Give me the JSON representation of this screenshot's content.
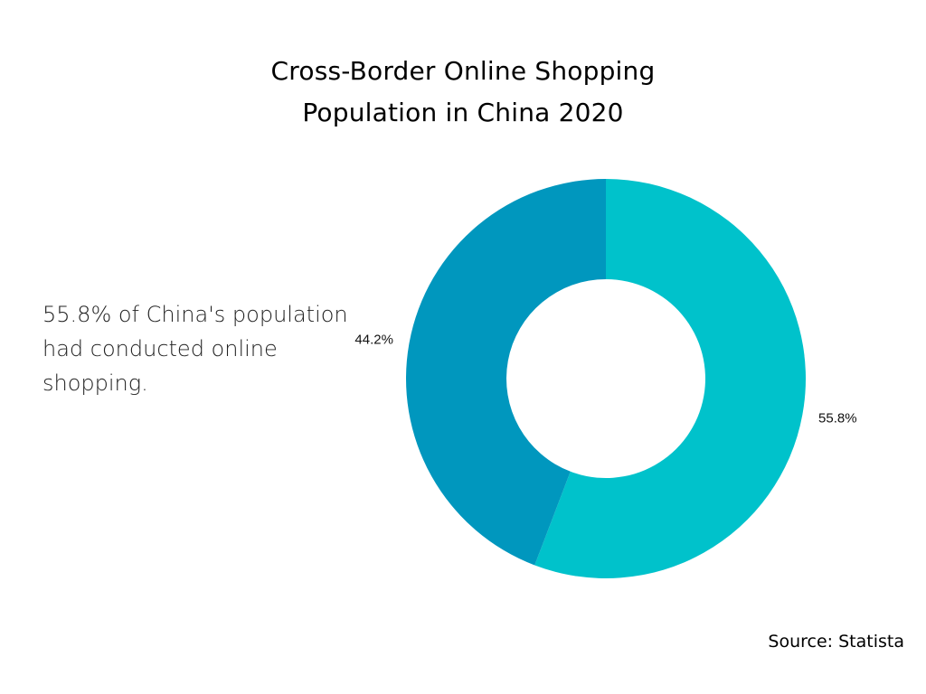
{
  "title_lines": [
    "Cross-Border Online Shopping",
    "Population in China 2020"
  ],
  "summary": "55.8% of China's population had conducted online shopping.",
  "source": "Source: Statista",
  "chart_data": {
    "type": "pie",
    "variant": "donut",
    "title": "Cross-Border Online Shopping Population in China 2020",
    "legend": "none",
    "slices": [
      {
        "label": "55.8%",
        "value": 55.8,
        "color": "#00c2cb"
      },
      {
        "label": "44.2%",
        "value": 44.2,
        "color": "#0097be"
      }
    ]
  }
}
